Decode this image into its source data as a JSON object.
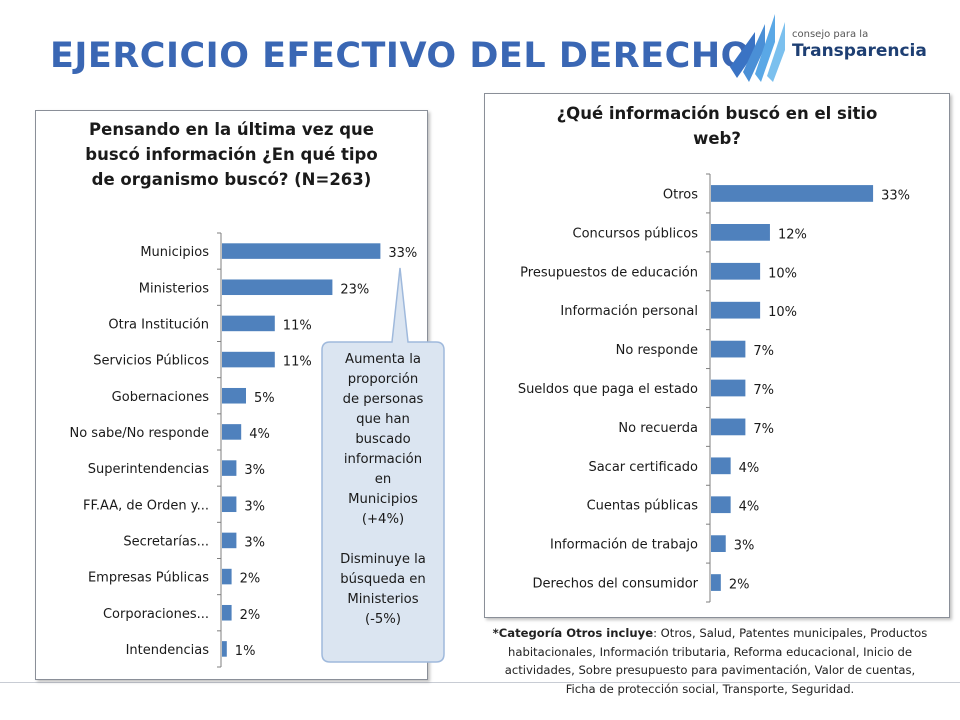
{
  "slide": {
    "title": "EJERCICIO EFECTIVO DEL DERECHO",
    "logo_small": "consejo para la",
    "logo_big": "Transparencia",
    "accent_color": "#3a67b4"
  },
  "chart_data": [
    {
      "type": "bar",
      "orientation": "horizontal",
      "title": "Pensando en la última vez que\nbuscó información ¿En qué tipo\nde organismo buscó? (N=263)",
      "categories": [
        "Municipios",
        "Ministerios",
        "Otra Institución",
        "Servicios Públicos",
        "Gobernaciones",
        "No sabe/No responde",
        "Superintendencias",
        "FF.AA, de Orden y...",
        "Secretarías...",
        "Empresas Públicas",
        "Corporaciones...",
        "Intendencias"
      ],
      "values": [
        33,
        23,
        11,
        11,
        5,
        4,
        3,
        3,
        3,
        2,
        2,
        1
      ],
      "data_labels": [
        "33%",
        "23%",
        "11%",
        "11%",
        "5%",
        "4%",
        "3%",
        "3%",
        "3%",
        "2%",
        "2%",
        "1%"
      ],
      "bar_color": "#4f81bd",
      "xlim": [
        0,
        40
      ]
    },
    {
      "type": "bar",
      "orientation": "horizontal",
      "title": "¿Qué información buscó en el sitio\nweb?",
      "categories": [
        "Otros",
        "Concursos públicos",
        "Presupuestos de educación",
        "Información personal",
        "No responde",
        "Sueldos que paga el estado",
        "No recuerda",
        "Sacar certificado",
        "Cuentas públicas",
        "Información de trabajo",
        "Derechos del consumidor"
      ],
      "values": [
        33,
        12,
        10,
        10,
        7,
        7,
        7,
        4,
        4,
        3,
        2
      ],
      "data_labels": [
        "33%",
        "12%",
        "10%",
        "10%",
        "7%",
        "7%",
        "7%",
        "4%",
        "4%",
        "3%",
        "2%"
      ],
      "bar_color": "#4f81bd",
      "xlim": [
        0,
        34
      ]
    }
  ],
  "callout": {
    "lines": [
      "Aumenta la",
      "proporción",
      "de personas",
      "que han",
      "buscado",
      "información",
      "en",
      "Municipios",
      "(+4%)",
      "",
      "Disminuye la",
      "búsqueda en",
      "Ministerios",
      "(-5%)"
    ],
    "fill_color": "#dbe5f1"
  },
  "note": {
    "bold_part": "*Categoría Otros incluye",
    "text": ": Otros, Salud, Patentes municipales, Productos habitacionales, Información tributaria, Reforma educacional, Inicio de actividades, Sobre presupuesto para pavimentación, Valor de  cuentas, Ficha de protección social, Transporte, Seguridad."
  }
}
